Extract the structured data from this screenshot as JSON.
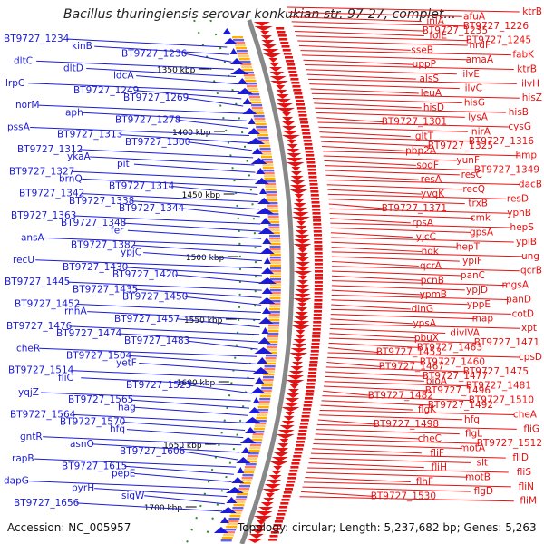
{
  "title": "Bacillus thuringiensis serovar konkukian str. 97-27, complet...",
  "footer": {
    "accession": "Accession: NC_005957",
    "topology": "Topology: circular; Length: 5,237,682 bp; Genes: 5,263"
  },
  "colors": {
    "forward": "#1a1ad8",
    "reverse": "#e81010",
    "backbone": "#888888"
  },
  "ticks": [
    "1350 kbp",
    "1400 kbp",
    "1450 kbp",
    "1500 kbp",
    "1550 kbp",
    "1600 kbp",
    "1650 kbp",
    "1700 kbp"
  ],
  "left_labels": [
    "BT9727_1234",
    "kinB",
    "BT9727_1236",
    "dltC",
    "dltD",
    "ldcA",
    "lrpC",
    "BT9727_1249",
    "BT9727_1269",
    "norM",
    "aph",
    "BT9727_1278",
    "pssA",
    "BT9727_1313",
    "BT9727_1300",
    "BT9727_1312",
    "ykaA",
    "pit",
    "BT9727_1327",
    "brnQ",
    "BT9727_1314",
    "BT9727_1342",
    "BT9727_1338",
    "BT9727_1344",
    "BT9727_1363",
    "BT9727_1348",
    "fer",
    "ansA",
    "BT9727_1382",
    "ypjC",
    "recU",
    "BT9727_1430",
    "BT9727_1420",
    "BT9727_1445",
    "BT9727_1435",
    "BT9727_1450",
    "BT9727_1452",
    "rnhA",
    "BT9727_1457",
    "BT9727_1476",
    "BT9727_1474",
    "BT9727_1483",
    "cheR",
    "BT9727_1504",
    "yetF",
    "BT9727_1514",
    "fliC",
    "BT9727_1523",
    "yqjZ",
    "BT9727_1565",
    "hag",
    "BT9727_1564",
    "BT9727_1570",
    "hfq",
    "gntR",
    "asnO",
    "BT9727_1606",
    "rapB",
    "BT9727_1615",
    "pepE",
    "dapG",
    "pyrH",
    "sigW",
    "BT9727_1656"
  ],
  "right_labels": [
    "ktrB",
    "afuA",
    "inlA",
    "BT9727_1226",
    "BT9727_1235",
    "folE",
    "BT9727_1245",
    "nrdF",
    "sseB",
    "fabK",
    "amaA",
    "uppP",
    "ktrB",
    "ilvE",
    "alsS",
    "ilvH",
    "ilvC",
    "leuA",
    "hisZ",
    "hisG",
    "hisD",
    "hisB",
    "lysA",
    "BT9727_1301",
    "cysG",
    "nirA",
    "gltT",
    "BT9727_1316",
    "BT9727_1325",
    "pbp2A",
    "hmp",
    "yunF",
    "sodF",
    "BT9727_1349",
    "resC",
    "resA",
    "dacB",
    "recQ",
    "yvqK",
    "resD",
    "trxB",
    "BT9727_1371",
    "yphB",
    "cmk",
    "rpsA",
    "hepS",
    "gpsA",
    "yjcC",
    "ypiB",
    "hepT",
    "ndk",
    "ung",
    "ypiF",
    "qcrA",
    "qcrB",
    "panC",
    "pcnB",
    "mgsA",
    "ypjD",
    "ypmB",
    "panD",
    "yppE",
    "dinG",
    "cotD",
    "map",
    "ypsA",
    "xpt",
    "divIVA",
    "pbuX",
    "BT9727_1471",
    "BT9727_1463",
    "BT9727_1453",
    "cpsD",
    "BT9727_1460",
    "BT9727_1467",
    "BT9727_1475",
    "BT9727_1477",
    "bioA",
    "BT9727_1481",
    "BT9727_1496",
    "BT9727_1482",
    "BT9727_1510",
    "BT9727_1492",
    "flgK",
    "cheA",
    "hfq",
    "BT9727_1498",
    "fliG",
    "flgL",
    "cheC",
    "BT9727_1512",
    "motA",
    "fliF",
    "fliD",
    "slt",
    "fliH",
    "fliS",
    "motB",
    "flhF",
    "fliN",
    "flgD",
    "BT9727_1530",
    "fliM"
  ]
}
